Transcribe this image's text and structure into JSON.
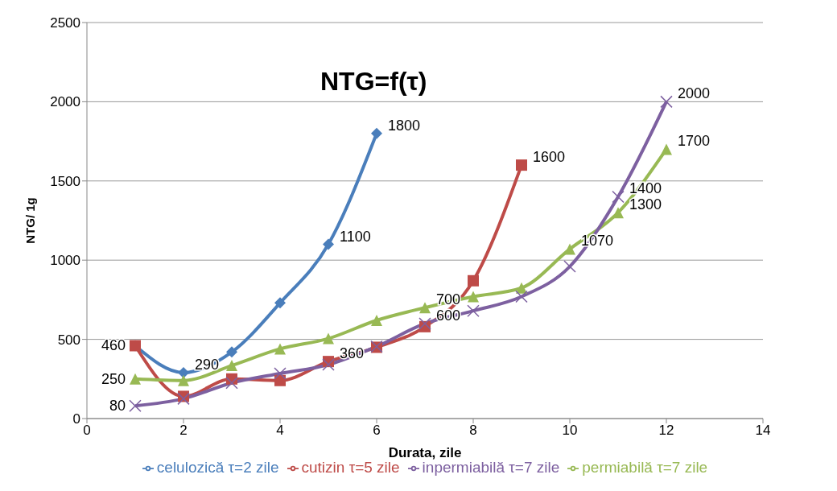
{
  "chart_data": {
    "type": "line",
    "title": "NTG=f(τ)",
    "xlabel": "Durata, zile",
    "ylabel": "NTG/ 1g",
    "xlim": [
      0,
      14
    ],
    "xticks": [
      0,
      2,
      4,
      6,
      8,
      10,
      12,
      14
    ],
    "ylim": [
      0,
      2500
    ],
    "yticks": [
      0,
      500,
      1000,
      1500,
      2000,
      2500
    ],
    "grid": "y",
    "legend": "bottom",
    "series": [
      {
        "name": "celulozică τ=2 zile",
        "color": "#4a7ebb",
        "marker": "diamond",
        "x": [
          1,
          2,
          3,
          4,
          5,
          6
        ],
        "values": [
          460,
          290,
          420,
          730,
          1100,
          1800
        ],
        "value_labels": [
          null,
          "290",
          null,
          null,
          "1100",
          "1800"
        ]
      },
      {
        "name": "cutizin τ=5 zile",
        "color": "#be4b48",
        "marker": "square",
        "x": [
          1,
          2,
          3,
          4,
          5,
          6,
          7,
          8,
          9
        ],
        "values": [
          460,
          140,
          250,
          240,
          360,
          450,
          580,
          870,
          1600
        ],
        "value_labels": [
          "460",
          null,
          null,
          null,
          "360",
          null,
          null,
          null,
          "1600"
        ]
      },
      {
        "name": "permiabilă τ=7 zile",
        "color": "#98b954",
        "marker": "triangle",
        "x": [
          1,
          2,
          3,
          4,
          5,
          6,
          7,
          8,
          9,
          10,
          11,
          12
        ],
        "values": [
          250,
          240,
          335,
          440,
          505,
          620,
          700,
          770,
          825,
          1070,
          1300,
          1700
        ],
        "value_labels": [
          "250",
          null,
          null,
          null,
          null,
          null,
          "700",
          null,
          null,
          "1070",
          "1300",
          "1700"
        ]
      },
      {
        "name": "inpermiabilă τ=7 zile",
        "color": "#7d60a0",
        "marker": "cross",
        "x": [
          1,
          2,
          3,
          4,
          5,
          6,
          7,
          8,
          9,
          10,
          11,
          12
        ],
        "values": [
          80,
          125,
          225,
          285,
          340,
          455,
          600,
          680,
          770,
          960,
          1400,
          2000
        ],
        "value_labels": [
          "80",
          null,
          null,
          null,
          null,
          null,
          "600",
          null,
          null,
          null,
          "1400",
          "2000"
        ]
      }
    ]
  }
}
